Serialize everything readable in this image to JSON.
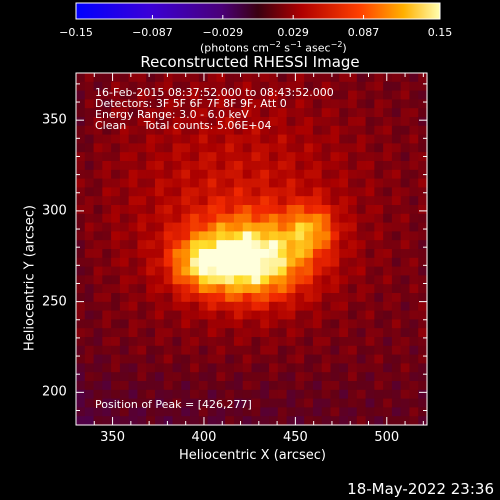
{
  "colorbar": {
    "tick_labels": [
      "−0.15",
      "−0.087",
      "−0.029",
      "0.029",
      "0.087",
      "0.15"
    ],
    "tick_values": [
      -0.15,
      -0.087,
      -0.029,
      0.029,
      0.087,
      0.15
    ],
    "units_html": "(photons cm⁻² s⁻¹ asec⁻²)"
  },
  "title": "Reconstructed RHESSI Image",
  "info": {
    "line1": "16-Feb-2015 08:37:52.000 to 08:43:52.000",
    "line2": "Detectors: 3F 5F 6F 7F 8F 9F, Att 0",
    "line3": "Energy Range: 3.0 - 6.0 keV",
    "line4": "Clean     Total counts: 5.06E+04"
  },
  "peak_label": "Position of Peak = [426,277]",
  "x_axis": {
    "label": "Heliocentric X (arcsec)",
    "ticks": [
      "350",
      "400",
      "450",
      "500"
    ],
    "tick_values": [
      350,
      400,
      450,
      500
    ],
    "range": [
      330,
      522
    ]
  },
  "y_axis": {
    "label": "Heliocentric Y (arcsec)",
    "ticks": [
      "200",
      "250",
      "300",
      "350"
    ],
    "tick_values": [
      200,
      250,
      300,
      350
    ],
    "range": [
      182,
      376
    ]
  },
  "timestamp": "18-May-2022 23:36",
  "colors": {
    "background": "#000000",
    "foreground": "#ffffff"
  }
}
